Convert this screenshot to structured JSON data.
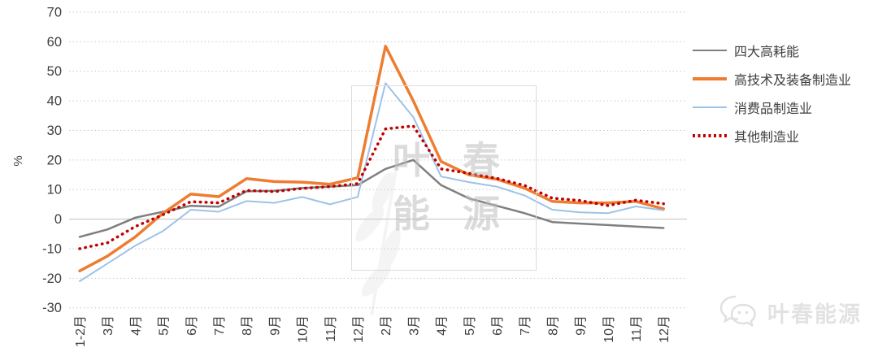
{
  "chart_data": {
    "type": "line",
    "title": "",
    "xlabel": "",
    "ylabel": "%",
    "ylim": [
      -30,
      70
    ],
    "ytick_step": 10,
    "grid": true,
    "legend_position": "right",
    "categories": [
      "1-2月",
      "3月",
      "4月",
      "5月",
      "6月",
      "7月",
      "8月",
      "9月",
      "10月",
      "11月",
      "12月",
      "2月",
      "3月",
      "4月",
      "5月",
      "6月",
      "7月",
      "8月",
      "9月",
      "10月",
      "11月",
      "12月"
    ],
    "series": [
      {
        "name": "四大高耗能",
        "color": "#7F7F7F",
        "style": "solid",
        "width": 2.5,
        "values": [
          -6,
          -3.5,
          0.5,
          2.5,
          4.5,
          4.2,
          9.4,
          9.6,
          10.5,
          11,
          11.5,
          17,
          20,
          11.5,
          7,
          4.5,
          2,
          -1,
          -1.5,
          -2,
          -2.5,
          -3
        ]
      },
      {
        "name": "高技术及装备制造业",
        "color": "#ED7D31",
        "style": "solid",
        "width": 3.5,
        "values": [
          -17.5,
          -12.5,
          -6,
          2,
          8.5,
          7.6,
          13.7,
          12.7,
          12.5,
          11.8,
          14,
          58.5,
          40,
          19.5,
          15,
          13.5,
          10.5,
          6,
          5.5,
          5.5,
          6,
          3.5
        ]
      },
      {
        "name": "消费品制造业",
        "color": "#9DC3E6",
        "style": "solid",
        "width": 2,
        "values": [
          -21,
          -15,
          -9,
          -4,
          3.2,
          2.5,
          6.1,
          5.5,
          7.5,
          5,
          7.5,
          46,
          34.5,
          14.4,
          12.5,
          11,
          8,
          3.2,
          2.3,
          2,
          4.3,
          3
        ]
      },
      {
        "name": "其他制造业",
        "color": "#C00000",
        "style": "dotted",
        "width": 3.5,
        "values": [
          -10,
          -8,
          -2.5,
          1.5,
          5.9,
          5.5,
          9.7,
          9.3,
          10.4,
          11,
          12,
          30.5,
          31.5,
          17,
          15.5,
          13.8,
          11.4,
          7.1,
          6.3,
          4.6,
          6.4,
          5.2
        ]
      }
    ]
  },
  "watermark": {
    "box_line1": "叶春",
    "box_line2": "能源",
    "footer": "叶春能源"
  },
  "colors": {
    "grid": "#C9C9C9",
    "zero_axis": "#BFBFBF",
    "tick_text": "#404040"
  }
}
